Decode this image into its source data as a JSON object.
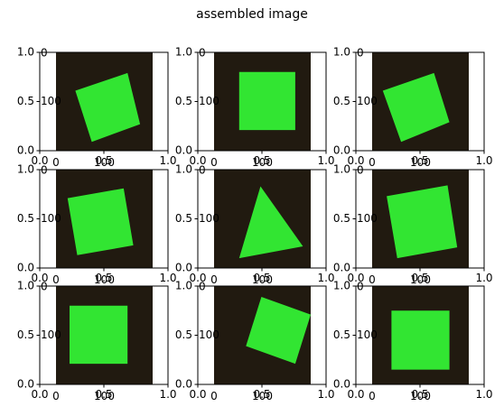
{
  "title": "assembled image",
  "colors": {
    "background": "#211a10",
    "shape": "#32e532",
    "axis": "#000000"
  },
  "outer_ticks": [
    "0.0",
    "0.5",
    "1.0"
  ],
  "inner_ticks": [
    "0",
    "100"
  ],
  "chart_data": [
    {
      "type": "image",
      "shape": "square",
      "row": 0,
      "col": 0,
      "polygon": [
        [
          0.2,
          0.61
        ],
        [
          0.74,
          0.79
        ],
        [
          0.87,
          0.27
        ],
        [
          0.37,
          0.09
        ]
      ],
      "xlim": [
        0,
        1
      ],
      "ylim": [
        0,
        1
      ],
      "xticks": [
        "0.0",
        "0.5",
        "1.0"
      ],
      "yticks": [
        "0.0",
        "0.5",
        "1.0"
      ],
      "inner_ticks": [
        "0",
        "100"
      ]
    },
    {
      "type": "image",
      "shape": "square",
      "row": 0,
      "col": 1,
      "polygon": [
        [
          0.26,
          0.8
        ],
        [
          0.84,
          0.8
        ],
        [
          0.84,
          0.21
        ],
        [
          0.26,
          0.21
        ]
      ],
      "xlim": [
        0,
        1
      ],
      "ylim": [
        0,
        1
      ],
      "xticks": [
        "0.0",
        "0.5",
        "1.0"
      ],
      "yticks": [
        "0.0",
        "0.5",
        "1.0"
      ],
      "inner_ticks": [
        "0",
        "100"
      ]
    },
    {
      "type": "image",
      "shape": "square",
      "row": 0,
      "col": 2,
      "polygon": [
        [
          0.11,
          0.61
        ],
        [
          0.64,
          0.79
        ],
        [
          0.8,
          0.29
        ],
        [
          0.3,
          0.09
        ]
      ],
      "xlim": [
        0,
        1
      ],
      "ylim": [
        0,
        1
      ],
      "xticks": [
        "0.0",
        "0.5",
        "1.0"
      ],
      "yticks": [
        "0.0",
        "0.5",
        "1.0"
      ],
      "inner_ticks": [
        "0",
        "100"
      ]
    },
    {
      "type": "image",
      "shape": "square",
      "row": 1,
      "col": 0,
      "polygon": [
        [
          0.12,
          0.71
        ],
        [
          0.7,
          0.81
        ],
        [
          0.8,
          0.23
        ],
        [
          0.22,
          0.13
        ]
      ],
      "xlim": [
        0,
        1
      ],
      "ylim": [
        0,
        1
      ],
      "xticks": [
        "0.0",
        "0.5",
        "1.0"
      ],
      "yticks": [
        "0.0",
        "0.5",
        "1.0"
      ],
      "inner_ticks": [
        "0",
        "100"
      ]
    },
    {
      "type": "image",
      "shape": "triangle",
      "row": 1,
      "col": 1,
      "polygon": [
        [
          0.48,
          0.83
        ],
        [
          0.92,
          0.22
        ],
        [
          0.26,
          0.1
        ]
      ],
      "xlim": [
        0,
        1
      ],
      "ylim": [
        0,
        1
      ],
      "xticks": [
        "0.0",
        "0.5",
        "1.0"
      ],
      "yticks": [
        "0.0",
        "0.5",
        "1.0"
      ],
      "inner_ticks": [
        "0",
        "100"
      ]
    },
    {
      "type": "image",
      "shape": "square",
      "row": 1,
      "col": 2,
      "polygon": [
        [
          0.15,
          0.73
        ],
        [
          0.78,
          0.84
        ],
        [
          0.88,
          0.21
        ],
        [
          0.26,
          0.1
        ]
      ],
      "xlim": [
        0,
        1
      ],
      "ylim": [
        0,
        1
      ],
      "xticks": [
        "0.0",
        "0.5",
        "1.0"
      ],
      "yticks": [
        "0.0",
        "0.5",
        "1.0"
      ],
      "inner_ticks": [
        "0",
        "100"
      ]
    },
    {
      "type": "image",
      "shape": "square",
      "row": 2,
      "col": 0,
      "polygon": [
        [
          0.14,
          0.8
        ],
        [
          0.74,
          0.8
        ],
        [
          0.74,
          0.21
        ],
        [
          0.14,
          0.21
        ]
      ],
      "xlim": [
        0,
        1
      ],
      "ylim": [
        0,
        1
      ],
      "xticks": [
        "0.0",
        "0.5",
        "1.0"
      ],
      "yticks": [
        "0.0",
        "0.5",
        "1.0"
      ],
      "inner_ticks": [
        "0",
        "100"
      ]
    },
    {
      "type": "image",
      "shape": "square",
      "row": 2,
      "col": 1,
      "polygon": [
        [
          0.49,
          0.89
        ],
        [
          1.0,
          0.71
        ],
        [
          0.84,
          0.21
        ],
        [
          0.33,
          0.39
        ]
      ],
      "xlim": [
        0,
        1
      ],
      "ylim": [
        0,
        1
      ],
      "xticks": [
        "0.0",
        "0.5",
        "1.0"
      ],
      "yticks": [
        "0.0",
        "0.5",
        "1.0"
      ],
      "inner_ticks": [
        "0",
        "100"
      ]
    },
    {
      "type": "image",
      "shape": "square",
      "row": 2,
      "col": 2,
      "polygon": [
        [
          0.2,
          0.75
        ],
        [
          0.8,
          0.75
        ],
        [
          0.8,
          0.15
        ],
        [
          0.2,
          0.15
        ]
      ],
      "xlim": [
        0,
        1
      ],
      "ylim": [
        0,
        1
      ],
      "xticks": [
        "0.0",
        "0.5",
        "1.0"
      ],
      "yticks": [
        "0.0",
        "0.5",
        "1.0"
      ],
      "inner_ticks": [
        "0",
        "100"
      ]
    }
  ]
}
